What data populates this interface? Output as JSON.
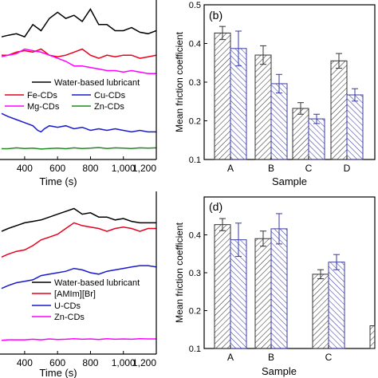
{
  "colors": {
    "black": "#000000",
    "red": "#e8001c",
    "magenta": "#ff00ff",
    "blue": "#1a1acc",
    "green": "#1f8c1f",
    "bar_dark_edge": "#333333",
    "bar_blue_edge": "#3a3aa8"
  },
  "chart_data": [
    {
      "id": "a",
      "type": "line",
      "xlabel": "Time (s)",
      "xticks": [
        "400",
        "600",
        "800",
        "1,000",
        "1,200"
      ],
      "xlim": [
        260,
        1200
      ],
      "legend": {
        "placement": "bottom",
        "entries": [
          "Water-based lubricant",
          "Fe-CDs",
          "Cu-CDs",
          "Mg-CDs",
          "Zn-CDs"
        ]
      },
      "series": [
        {
          "name": "Water-based lubricant",
          "color": "black",
          "x": [
            260,
            300,
            350,
            400,
            450,
            500,
            550,
            600,
            650,
            700,
            750,
            800,
            850,
            900,
            950,
            1000,
            1050,
            1100,
            1150,
            1200
          ],
          "y": [
            0.7,
            0.705,
            0.71,
            0.7,
            0.74,
            0.72,
            0.76,
            0.78,
            0.76,
            0.77,
            0.75,
            0.79,
            0.74,
            0.74,
            0.72,
            0.72,
            0.73,
            0.715,
            0.71,
            0.72
          ]
        },
        {
          "name": "Fe-CDs",
          "color": "red",
          "x": [
            260,
            300,
            350,
            400,
            450,
            500,
            550,
            600,
            650,
            700,
            750,
            800,
            850,
            900,
            950,
            1000,
            1050,
            1100,
            1150,
            1200
          ],
          "y": [
            0.64,
            0.64,
            0.65,
            0.655,
            0.65,
            0.66,
            0.64,
            0.635,
            0.64,
            0.65,
            0.66,
            0.64,
            0.63,
            0.64,
            0.635,
            0.64,
            0.64,
            0.63,
            0.635,
            0.64
          ]
        },
        {
          "name": "Mg-CDs",
          "color": "magenta",
          "x": [
            260,
            300,
            350,
            400,
            450,
            500,
            550,
            600,
            650,
            700,
            750,
            800,
            850,
            900,
            950,
            1000,
            1050,
            1100,
            1150,
            1200
          ],
          "y": [
            0.635,
            0.64,
            0.645,
            0.66,
            0.655,
            0.65,
            0.64,
            0.63,
            0.62,
            0.605,
            0.605,
            0.6,
            0.595,
            0.59,
            0.59,
            0.585,
            0.59,
            0.585,
            0.58,
            0.58
          ]
        },
        {
          "name": "Cu-CDs",
          "color": "blue",
          "x": [
            260,
            300,
            350,
            400,
            450,
            480,
            500,
            520,
            550,
            600,
            650,
            700,
            750,
            800,
            850,
            900,
            950,
            1000,
            1050,
            1100,
            1150,
            1200
          ],
          "y": [
            0.45,
            0.44,
            0.43,
            0.42,
            0.41,
            0.395,
            0.39,
            0.4,
            0.41,
            0.405,
            0.41,
            0.4,
            0.405,
            0.395,
            0.4,
            0.395,
            0.4,
            0.395,
            0.39,
            0.395,
            0.39,
            0.39
          ]
        },
        {
          "name": "Zn-CDs",
          "color": "green",
          "x": [
            260,
            300,
            350,
            400,
            450,
            500,
            550,
            600,
            650,
            700,
            750,
            800,
            850,
            900,
            950,
            1000,
            1050,
            1100,
            1150,
            1200
          ],
          "y": [
            0.335,
            0.335,
            0.338,
            0.336,
            0.337,
            0.334,
            0.336,
            0.337,
            0.335,
            0.338,
            0.336,
            0.337,
            0.339,
            0.336,
            0.338,
            0.337,
            0.336,
            0.338,
            0.337,
            0.338
          ]
        }
      ]
    },
    {
      "id": "b",
      "panel_label": "(b)",
      "type": "bar",
      "ylabel": "Mean friction coefficient",
      "xlabel": "Sample",
      "ylim": [
        0.1,
        0.5
      ],
      "yticks": [
        "0.1",
        "0.2",
        "0.3",
        "0.4",
        "0.5"
      ],
      "categories": [
        "A",
        "B",
        "C",
        "D"
      ],
      "series": [
        {
          "values": [
            0.427,
            0.37,
            0.232,
            0.355
          ],
          "errors": [
            0.017,
            0.024,
            0.015,
            0.019
          ]
        },
        {
          "values": [
            0.387,
            0.296,
            0.205,
            0.267
          ],
          "errors": [
            0.045,
            0.024,
            0.012,
            0.016
          ]
        }
      ]
    },
    {
      "id": "c",
      "type": "line",
      "xlabel": "Time (s)",
      "xticks": [
        "400",
        "600",
        "800",
        "1,000",
        "1,200"
      ],
      "xlim": [
        260,
        1200
      ],
      "legend": {
        "placement": "bottom",
        "entries": [
          "Water-based lubricant",
          "[AMIm][Br]",
          "U-CDs",
          "Zn-CDs"
        ]
      },
      "series": [
        {
          "name": "Water-based lubricant",
          "color": "black",
          "x": [
            260,
            300,
            350,
            400,
            450,
            500,
            550,
            600,
            650,
            700,
            750,
            800,
            850,
            900,
            950,
            1000,
            1050,
            1100,
            1150,
            1200
          ],
          "y": [
            0.69,
            0.7,
            0.71,
            0.72,
            0.725,
            0.73,
            0.74,
            0.75,
            0.76,
            0.77,
            0.75,
            0.755,
            0.74,
            0.74,
            0.73,
            0.735,
            0.725,
            0.72,
            0.72,
            0.72
          ]
        },
        {
          "name": "[AMIm][Br]",
          "color": "red",
          "x": [
            260,
            300,
            350,
            400,
            450,
            500,
            550,
            600,
            650,
            700,
            750,
            800,
            850,
            900,
            950,
            1000,
            1050,
            1100,
            1150,
            1200
          ],
          "y": [
            0.6,
            0.61,
            0.62,
            0.625,
            0.64,
            0.66,
            0.67,
            0.68,
            0.7,
            0.72,
            0.71,
            0.705,
            0.7,
            0.69,
            0.7,
            0.705,
            0.7,
            0.69,
            0.7,
            0.7
          ]
        },
        {
          "name": "U-CDs",
          "color": "blue",
          "x": [
            260,
            300,
            350,
            400,
            450,
            500,
            550,
            600,
            650,
            700,
            750,
            800,
            850,
            900,
            950,
            1000,
            1050,
            1100,
            1150,
            1200
          ],
          "y": [
            0.49,
            0.5,
            0.51,
            0.515,
            0.52,
            0.535,
            0.54,
            0.545,
            0.55,
            0.56,
            0.555,
            0.545,
            0.54,
            0.55,
            0.555,
            0.56,
            0.565,
            0.57,
            0.57,
            0.565
          ]
        },
        {
          "name": "Zn-CDs",
          "color": "magenta",
          "x": [
            260,
            300,
            350,
            400,
            450,
            500,
            550,
            600,
            650,
            700,
            750,
            800,
            850,
            900,
            950,
            1000,
            1050,
            1100,
            1150,
            1200
          ],
          "y": [
            0.308,
            0.31,
            0.31,
            0.31,
            0.312,
            0.31,
            0.313,
            0.311,
            0.312,
            0.314,
            0.312,
            0.313,
            0.311,
            0.314,
            0.312,
            0.313,
            0.312,
            0.314,
            0.313,
            0.313
          ]
        }
      ]
    },
    {
      "id": "d",
      "panel_label": "(d)",
      "type": "bar",
      "ylabel": "Mean friction coefficient",
      "xlabel": "Sample",
      "ylim": [
        0.1,
        0.5
      ],
      "yticks": [
        "0.1",
        "0.2",
        "0.3",
        "0.4"
      ],
      "categories": [
        "A",
        "B",
        "C"
      ],
      "series": [
        {
          "values": [
            0.427,
            0.39,
            0.296
          ],
          "errors": [
            0.016,
            0.02,
            0.012
          ]
        },
        {
          "values": [
            0.387,
            0.416,
            0.328
          ],
          "errors": [
            0.044,
            0.04,
            0.02
          ]
        }
      ]
    }
  ]
}
